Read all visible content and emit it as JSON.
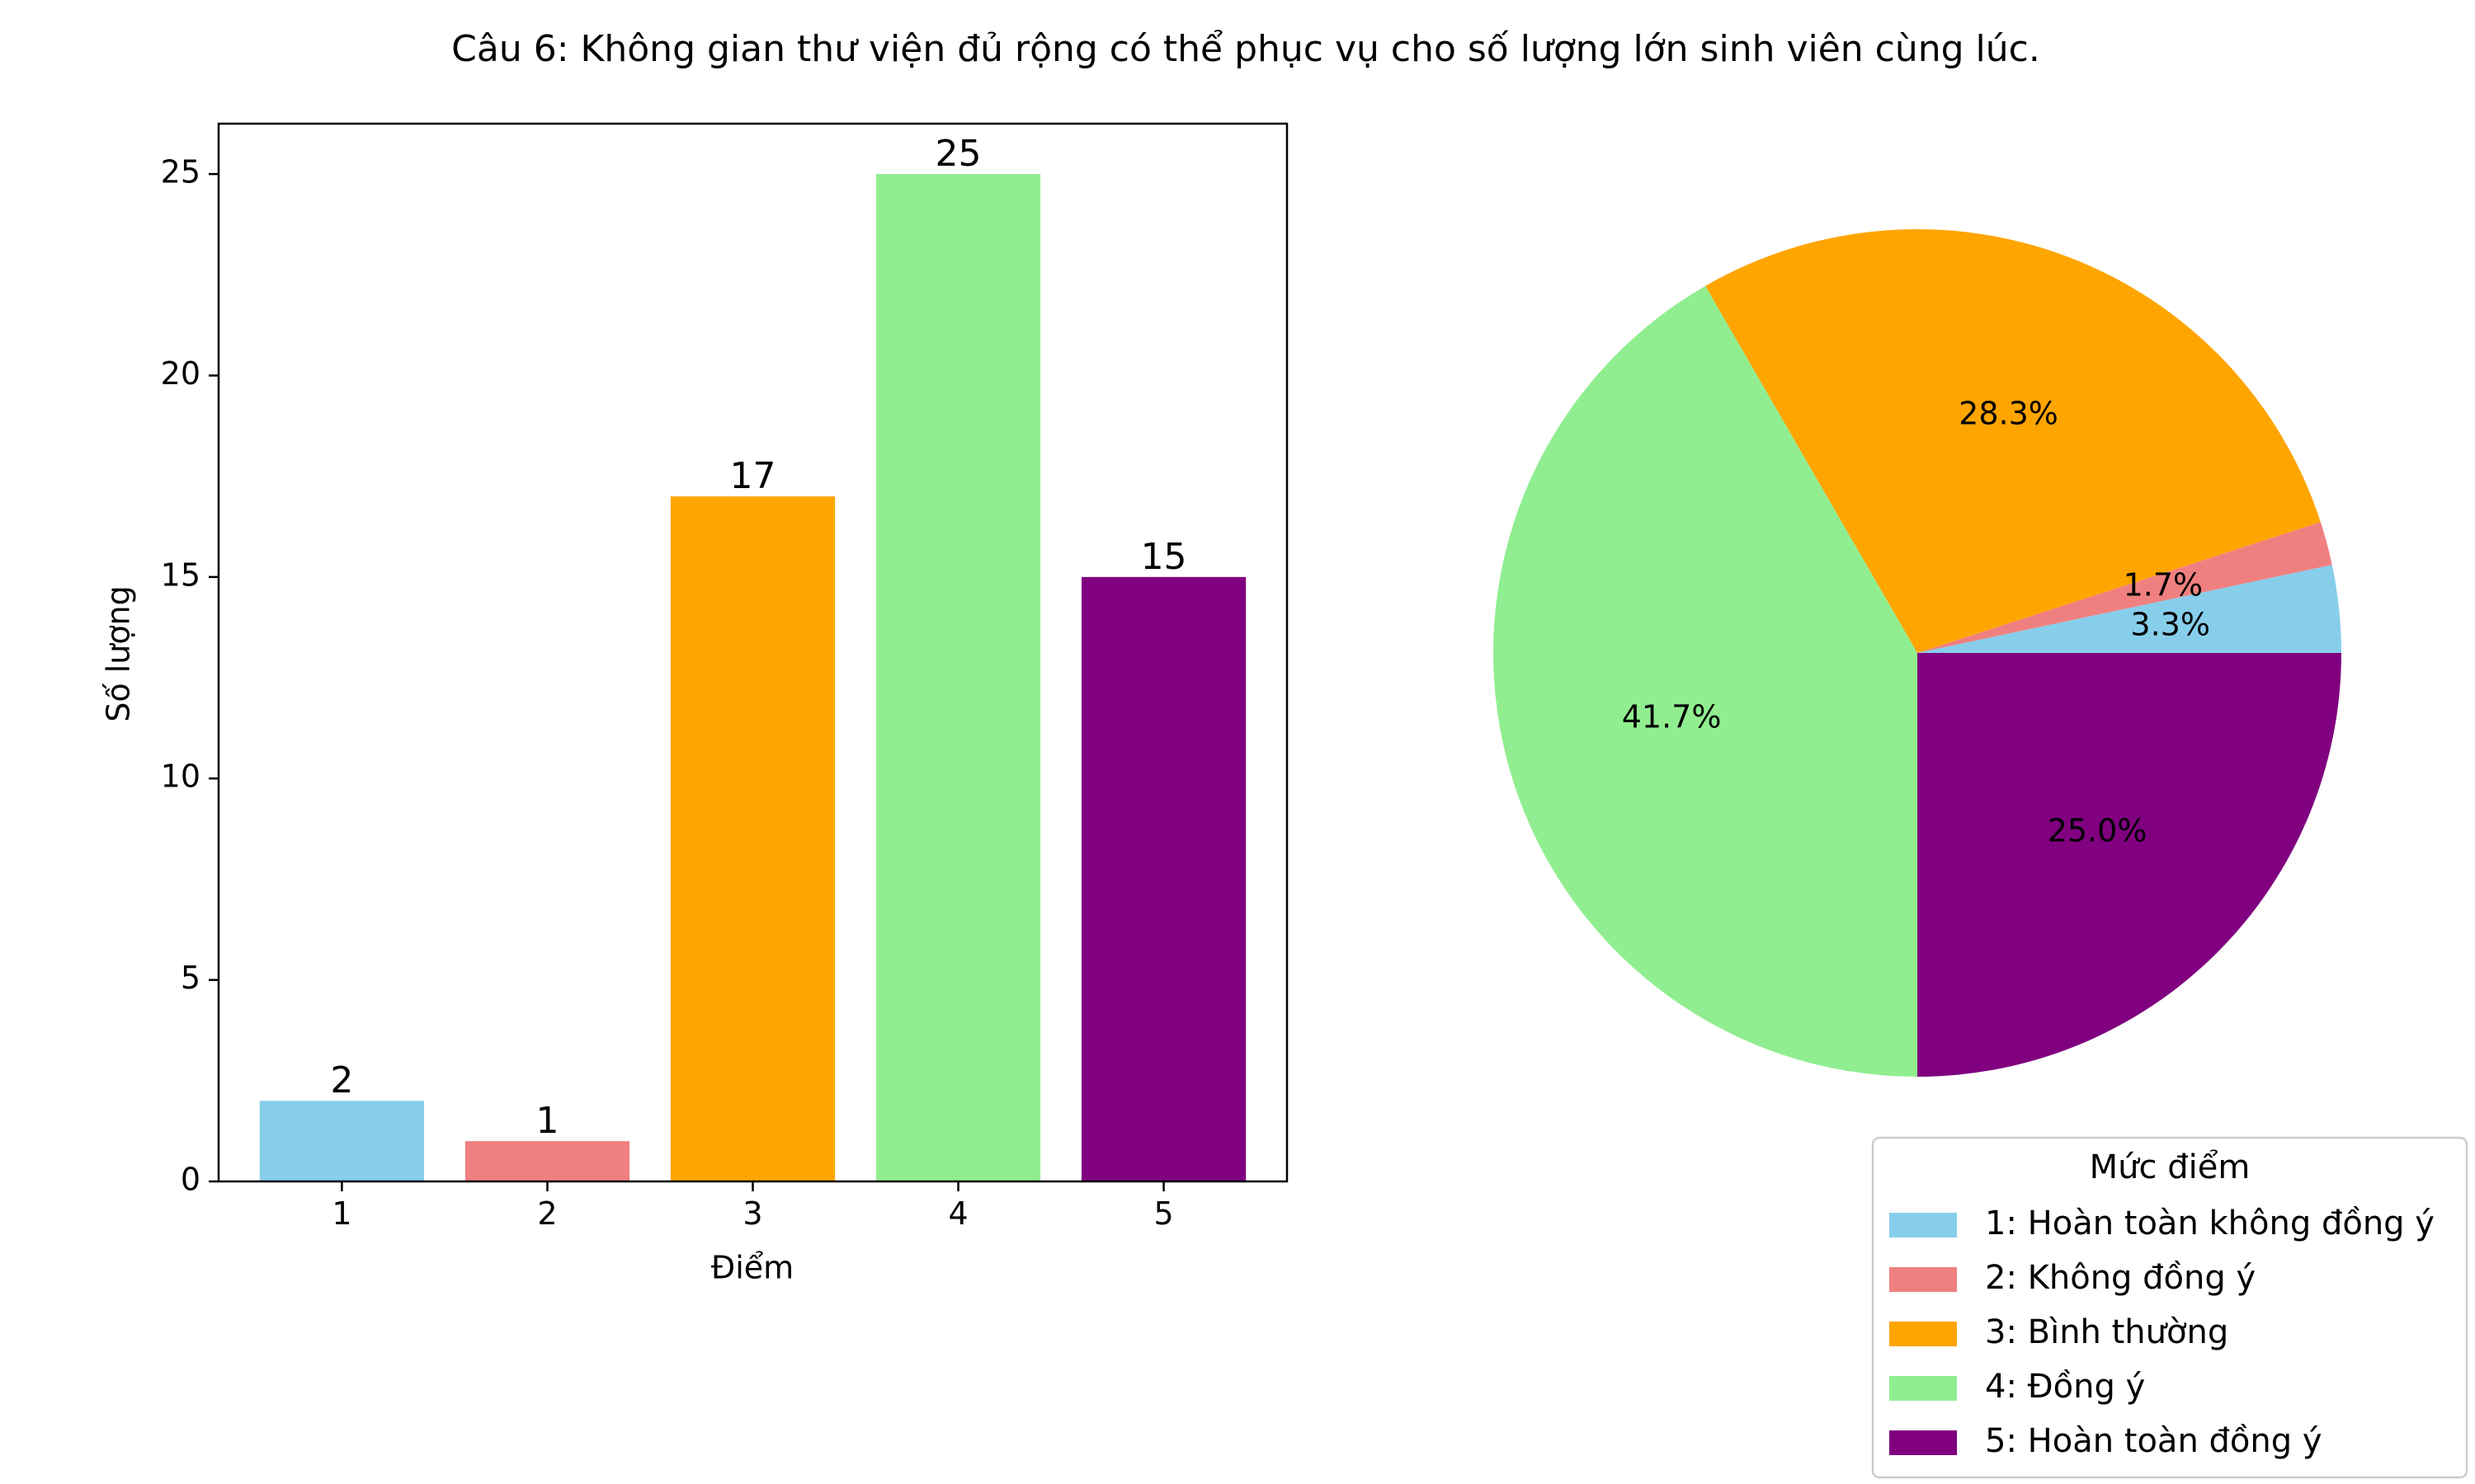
{
  "title": "Câu 6: Không gian thư viện đủ rộng có thể phục vụ cho số lượng lớn sinh viên cùng lúc.",
  "chart_data": [
    {
      "type": "bar",
      "categories": [
        "1",
        "2",
        "3",
        "4",
        "5"
      ],
      "values": [
        2,
        1,
        17,
        25,
        15
      ],
      "data_labels": [
        "2",
        "1",
        "17",
        "25",
        "15"
      ],
      "colors": [
        "#87CEEB",
        "#F08080",
        "#FFA500",
        "#90EE90",
        "#800080"
      ],
      "xlabel": "Điểm",
      "ylabel": "Số lượng",
      "ylim": [
        0,
        26.25
      ],
      "yticks": [
        0,
        5,
        10,
        15,
        20,
        25
      ],
      "ytick_labels": [
        "0",
        "5",
        "10",
        "15",
        "20",
        "25"
      ],
      "grid": false
    },
    {
      "type": "pie",
      "labels": [
        "1: Hoàn toàn không đồng ý",
        "2: Không đồng ý",
        "3: Bình thường",
        "4: Đồng ý",
        "5: Hoàn toàn đồng ý"
      ],
      "values": [
        2,
        1,
        17,
        25,
        15
      ],
      "percent_labels": [
        "3.3%",
        "1.7%",
        "28.3%",
        "41.7%",
        "25.0%"
      ],
      "colors": [
        "#87CEEB",
        "#F08080",
        "#FFA500",
        "#90EE90",
        "#800080"
      ],
      "start_angle_deg": 0,
      "direction": "counterclockwise",
      "legend": {
        "title": "Mức điểm",
        "placement": "lower-right",
        "entries": [
          "1: Hoàn toàn không đồng ý",
          "2: Không đồng ý",
          "3: Bình thường",
          "4: Đồng ý",
          "5: Hoàn toàn đồng ý"
        ]
      }
    }
  ]
}
